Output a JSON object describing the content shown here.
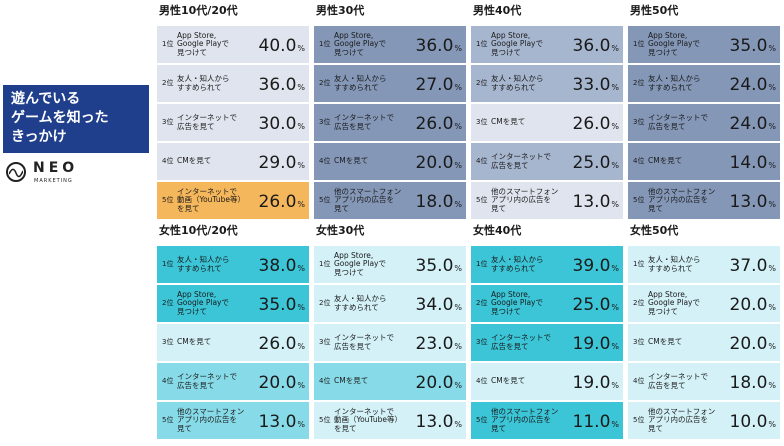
{
  "title": "遊んでいる\nゲームを知った\nきっかけ",
  "logo": {
    "name": "NEO",
    "sub": "MARKETING"
  },
  "colors": {
    "male_light": "#dfe4ee",
    "male_mid": "#a7b6cf",
    "male_dark": "#8497b7",
    "female_light": "#d3f1f7",
    "female_mid": "#87dbe8",
    "female_dark": "#3bc5d6",
    "highlight": "#f5b75c"
  },
  "groups": [
    {
      "title": "男性10代/20代",
      "rows": [
        {
          "rank": "1位",
          "label": "App Store,\nGoogle Playで\n見つけて",
          "value": "40.0",
          "unit": "%"
        },
        {
          "rank": "2位",
          "label": "友人・知人から\nすすめられて",
          "value": "36.0",
          "unit": "%"
        },
        {
          "rank": "3位",
          "label": "インターネットで\n広告を見て",
          "value": "30.0",
          "unit": "%"
        },
        {
          "rank": "4位",
          "label": "CMを見て",
          "value": "29.0",
          "unit": "%"
        },
        {
          "rank": "5位",
          "label": "インターネットで\n動画（YouTube等）\nを見て",
          "value": "26.0",
          "unit": "%"
        }
      ]
    },
    {
      "title": "男性30代",
      "rows": [
        {
          "rank": "1位",
          "label": "App Store,\nGoogle Playで\n見つけて",
          "value": "36.0",
          "unit": "%"
        },
        {
          "rank": "2位",
          "label": "友人・知人から\nすすめられて",
          "value": "27.0",
          "unit": "%"
        },
        {
          "rank": "3位",
          "label": "インターネットで\n広告を見て",
          "value": "26.0",
          "unit": "%"
        },
        {
          "rank": "4位",
          "label": "CMを見て",
          "value": "20.0",
          "unit": "%"
        },
        {
          "rank": "5位",
          "label": "他のスマートフォン\nアプリ内の広告を\n見て",
          "value": "18.0",
          "unit": "%"
        }
      ]
    },
    {
      "title": "男性40代",
      "rows": [
        {
          "rank": "1位",
          "label": "App Store,\nGoogle Playで\n見つけて",
          "value": "36.0",
          "unit": "%"
        },
        {
          "rank": "2位",
          "label": "友人・知人から\nすすめられて",
          "value": "33.0",
          "unit": "%"
        },
        {
          "rank": "3位",
          "label": "CMを見て",
          "value": "26.0",
          "unit": "%"
        },
        {
          "rank": "4位",
          "label": "インターネットで\n広告を見て",
          "value": "25.0",
          "unit": "%"
        },
        {
          "rank": "5位",
          "label": "他のスマートフォン\nアプリ内の広告を\n見て",
          "value": "13.0",
          "unit": "%"
        }
      ]
    },
    {
      "title": "男性50代",
      "rows": [
        {
          "rank": "1位",
          "label": "App Store,\nGoogle Playで\n見つけて",
          "value": "35.0",
          "unit": "%"
        },
        {
          "rank": "2位",
          "label": "友人・知人から\nすすめられて",
          "value": "24.0",
          "unit": "%"
        },
        {
          "rank": "3位",
          "label": "インターネットで\n広告を見て",
          "value": "24.0",
          "unit": "%"
        },
        {
          "rank": "4位",
          "label": "CMを見て",
          "value": "14.0",
          "unit": "%"
        },
        {
          "rank": "5位",
          "label": "他のスマートフォン\nアプリ内の広告を\n見て",
          "value": "13.0",
          "unit": "%"
        }
      ]
    },
    {
      "title": "女性10代/20代",
      "rows": [
        {
          "rank": "1位",
          "label": "友人・知人から\nすすめられて",
          "value": "38.0",
          "unit": "%"
        },
        {
          "rank": "2位",
          "label": "App Store,\nGoogle Playで\n見つけて",
          "value": "35.0",
          "unit": "%"
        },
        {
          "rank": "3位",
          "label": "CMを見て",
          "value": "26.0",
          "unit": "%"
        },
        {
          "rank": "4位",
          "label": "インターネットで\n広告を見て",
          "value": "20.0",
          "unit": "%"
        },
        {
          "rank": "5位",
          "label": "他のスマートフォン\nアプリ内の広告を\n見て",
          "value": "13.0",
          "unit": "%"
        }
      ]
    },
    {
      "title": "女性30代",
      "rows": [
        {
          "rank": "1位",
          "label": "App Store,\nGoogle Playで\n見つけて",
          "value": "35.0",
          "unit": "%"
        },
        {
          "rank": "2位",
          "label": "友人・知人から\nすすめられて",
          "value": "34.0",
          "unit": "%"
        },
        {
          "rank": "3位",
          "label": "インターネットで\n広告を見て",
          "value": "23.0",
          "unit": "%"
        },
        {
          "rank": "4位",
          "label": "CMを見て",
          "value": "20.0",
          "unit": "%"
        },
        {
          "rank": "5位",
          "label": "インターネットで\n動画（YouTube等）\nを見て",
          "value": "13.0",
          "unit": "%"
        }
      ]
    },
    {
      "title": "女性40代",
      "rows": [
        {
          "rank": "1位",
          "label": "友人・知人から\nすすめられて",
          "value": "39.0",
          "unit": "%"
        },
        {
          "rank": "2位",
          "label": "App Store,\nGoogle Playで\n見つけて",
          "value": "25.0",
          "unit": "%"
        },
        {
          "rank": "3位",
          "label": "インターネットで\n広告を見て",
          "value": "19.0",
          "unit": "%"
        },
        {
          "rank": "4位",
          "label": "CMを見て",
          "value": "19.0",
          "unit": "%"
        },
        {
          "rank": "5位",
          "label": "他のスマートフォン\nアプリ内の広告を\n見て",
          "value": "11.0",
          "unit": "%"
        }
      ]
    },
    {
      "title": "女性50代",
      "rows": [
        {
          "rank": "1位",
          "label": "友人・知人から\nすすめられて",
          "value": "37.0",
          "unit": "%"
        },
        {
          "rank": "2位",
          "label": "App Store,\nGoogle Playで\n見つけて",
          "value": "20.0",
          "unit": "%"
        },
        {
          "rank": "3位",
          "label": "CMを見て",
          "value": "20.0",
          "unit": "%"
        },
        {
          "rank": "4位",
          "label": "インターネットで\n広告を見て",
          "value": "18.0",
          "unit": "%"
        },
        {
          "rank": "5位",
          "label": "他のスマートフォン\nアプリ内の広告を\n見て",
          "value": "10.0",
          "unit": "%"
        }
      ]
    }
  ]
}
